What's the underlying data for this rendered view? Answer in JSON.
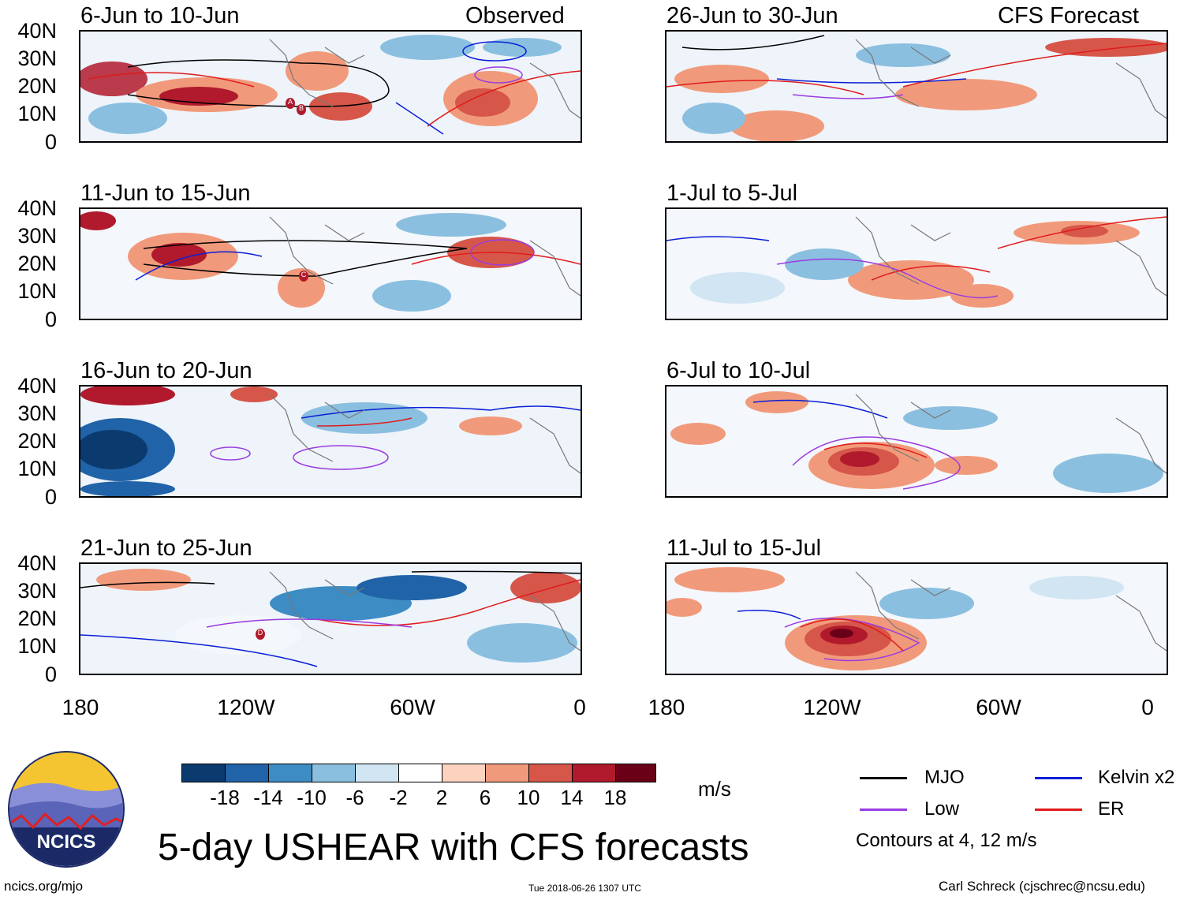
{
  "header": {
    "observed_label": "Observed",
    "forecast_label": "CFS Forecast"
  },
  "panels_left": [
    {
      "period": "6-Jun to 10-Jun"
    },
    {
      "period": "11-Jun to 15-Jun"
    },
    {
      "period": "16-Jun to 20-Jun"
    },
    {
      "period": "21-Jun to 25-Jun"
    }
  ],
  "panels_right": [
    {
      "period": "26-Jun to 30-Jun"
    },
    {
      "period": "1-Jul to 5-Jul"
    },
    {
      "period": "6-Jul to 10-Jul"
    },
    {
      "period": "11-Jul to 15-Jul"
    }
  ],
  "lat_ticks": [
    "40N",
    "30N",
    "20N",
    "10N",
    "0"
  ],
  "lon_ticks": [
    "180",
    "120W",
    "60W",
    "0"
  ],
  "colorbar": {
    "labels": [
      "-18",
      "-14",
      "-10",
      "-6",
      "-2",
      "2",
      "6",
      "10",
      "14",
      "18"
    ],
    "colors": [
      "#0b3a6e",
      "#2163a8",
      "#3d8cc4",
      "#8bbfe0",
      "#d1e5f3",
      "#ffffff",
      "#fbd3bf",
      "#f19a7b",
      "#d6574a",
      "#b01a2c",
      "#6a0018"
    ],
    "units": "m/s"
  },
  "legend": {
    "mjo": "MJO",
    "kelvin": "Kelvin x2",
    "low": "Low",
    "er": "ER",
    "contours_note": "Contours at 4, 12 m/s",
    "colors": {
      "mjo": "#000000",
      "kelvin": "#0a1fd6",
      "low": "#9a3ce0",
      "er": "#e01b1b"
    }
  },
  "logo": {
    "text": "NCICS"
  },
  "title": "5-day USHEAR with CFS forecasts",
  "footer": {
    "left": "ncics.org/mjo",
    "center": "Tue 2018-06-26 1307 UTC",
    "right": "Carl Schreck (cjschrec@ncsu.edu)"
  },
  "storm_markers": [
    {
      "panel": "6-Jun to 10-Jun",
      "label": "A"
    },
    {
      "panel": "6-Jun to 10-Jun",
      "label": "B"
    },
    {
      "panel": "11-Jun to 15-Jun",
      "label": "C"
    },
    {
      "panel": "21-Jun to 25-Jun",
      "label": "D"
    }
  ]
}
